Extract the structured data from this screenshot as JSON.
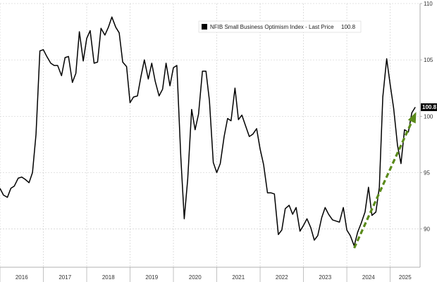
{
  "chart_data": {
    "type": "line",
    "title": "",
    "xlabel": "",
    "ylabel": "",
    "x_ticks": [
      "2016",
      "2017",
      "2018",
      "2019",
      "2020",
      "2021",
      "2022",
      "2023",
      "2024",
      "2025"
    ],
    "y_ticks": [
      90,
      95,
      100,
      105,
      110
    ],
    "xlim": [
      2016.0,
      2025.5
    ],
    "ylim": [
      87.5,
      110
    ],
    "grid": true,
    "legend_position": "top-center",
    "series": [
      {
        "name": "NFIB Small Business Optimism Index - Last Price",
        "last_price": "100.8",
        "color": "#000000",
        "points": [
          [
            2016.0,
            93.6
          ],
          [
            2016.08,
            93.0
          ],
          [
            2016.17,
            92.8
          ],
          [
            2016.25,
            93.6
          ],
          [
            2016.33,
            93.8
          ],
          [
            2016.42,
            94.5
          ],
          [
            2016.5,
            94.6
          ],
          [
            2016.58,
            94.4
          ],
          [
            2016.67,
            94.1
          ],
          [
            2016.75,
            95.0
          ],
          [
            2016.83,
            98.4
          ],
          [
            2016.92,
            105.8
          ],
          [
            2017.0,
            105.9
          ],
          [
            2017.08,
            105.3
          ],
          [
            2017.17,
            104.7
          ],
          [
            2017.25,
            104.5
          ],
          [
            2017.33,
            104.5
          ],
          [
            2017.42,
            103.6
          ],
          [
            2017.5,
            105.2
          ],
          [
            2017.58,
            105.3
          ],
          [
            2017.67,
            103.0
          ],
          [
            2017.75,
            103.8
          ],
          [
            2017.83,
            107.5
          ],
          [
            2017.92,
            104.9
          ],
          [
            2018.0,
            106.9
          ],
          [
            2018.08,
            107.6
          ],
          [
            2018.17,
            104.7
          ],
          [
            2018.25,
            104.8
          ],
          [
            2018.33,
            107.8
          ],
          [
            2018.42,
            107.2
          ],
          [
            2018.5,
            107.9
          ],
          [
            2018.58,
            108.8
          ],
          [
            2018.67,
            107.9
          ],
          [
            2018.75,
            107.4
          ],
          [
            2018.83,
            104.8
          ],
          [
            2018.92,
            104.4
          ],
          [
            2019.0,
            101.2
          ],
          [
            2019.08,
            101.7
          ],
          [
            2019.17,
            101.8
          ],
          [
            2019.25,
            103.5
          ],
          [
            2019.33,
            105.0
          ],
          [
            2019.42,
            103.3
          ],
          [
            2019.5,
            104.7
          ],
          [
            2019.58,
            103.1
          ],
          [
            2019.67,
            101.8
          ],
          [
            2019.75,
            102.4
          ],
          [
            2019.83,
            104.7
          ],
          [
            2019.92,
            102.7
          ],
          [
            2020.0,
            104.3
          ],
          [
            2020.08,
            104.5
          ],
          [
            2020.17,
            96.4
          ],
          [
            2020.25,
            90.9
          ],
          [
            2020.33,
            94.4
          ],
          [
            2020.42,
            100.6
          ],
          [
            2020.5,
            98.8
          ],
          [
            2020.58,
            100.2
          ],
          [
            2020.67,
            104.0
          ],
          [
            2020.75,
            104.0
          ],
          [
            2020.83,
            101.4
          ],
          [
            2020.92,
            95.9
          ],
          [
            2021.0,
            95.0
          ],
          [
            2021.08,
            95.8
          ],
          [
            2021.17,
            98.2
          ],
          [
            2021.25,
            99.8
          ],
          [
            2021.33,
            99.6
          ],
          [
            2021.42,
            102.5
          ],
          [
            2021.5,
            99.7
          ],
          [
            2021.58,
            100.1
          ],
          [
            2021.67,
            99.1
          ],
          [
            2021.75,
            98.2
          ],
          [
            2021.83,
            98.4
          ],
          [
            2021.92,
            98.9
          ],
          [
            2022.0,
            97.1
          ],
          [
            2022.08,
            95.7
          ],
          [
            2022.17,
            93.2
          ],
          [
            2022.25,
            93.2
          ],
          [
            2022.33,
            93.1
          ],
          [
            2022.42,
            89.5
          ],
          [
            2022.5,
            89.9
          ],
          [
            2022.58,
            91.8
          ],
          [
            2022.67,
            92.1
          ],
          [
            2022.75,
            91.3
          ],
          [
            2022.83,
            91.9
          ],
          [
            2022.92,
            89.8
          ],
          [
            2023.0,
            90.3
          ],
          [
            2023.08,
            90.9
          ],
          [
            2023.17,
            90.1
          ],
          [
            2023.25,
            89.0
          ],
          [
            2023.33,
            89.4
          ],
          [
            2023.42,
            91.0
          ],
          [
            2023.5,
            91.9
          ],
          [
            2023.58,
            91.3
          ],
          [
            2023.67,
            90.8
          ],
          [
            2023.75,
            90.7
          ],
          [
            2023.83,
            90.6
          ],
          [
            2023.92,
            91.9
          ],
          [
            2024.0,
            89.9
          ],
          [
            2024.08,
            89.4
          ],
          [
            2024.17,
            88.5
          ],
          [
            2024.25,
            89.7
          ],
          [
            2024.33,
            90.5
          ],
          [
            2024.42,
            91.5
          ],
          [
            2024.5,
            93.7
          ],
          [
            2024.58,
            91.2
          ],
          [
            2024.67,
            91.5
          ],
          [
            2024.75,
            93.7
          ],
          [
            2024.83,
            101.7
          ],
          [
            2024.92,
            105.1
          ],
          [
            2025.0,
            102.8
          ],
          [
            2025.08,
            100.7
          ],
          [
            2025.17,
            97.4
          ],
          [
            2025.25,
            95.8
          ],
          [
            2025.33,
            98.8
          ],
          [
            2025.42,
            98.6
          ],
          [
            2025.5,
            100.3
          ],
          [
            2025.58,
            100.8
          ]
        ]
      }
    ],
    "trendline": {
      "color": "#5a8a1a",
      "style": "dashed",
      "from": [
        2024.17,
        88.3
      ],
      "to": [
        2025.58,
        100.2
      ]
    }
  }
}
